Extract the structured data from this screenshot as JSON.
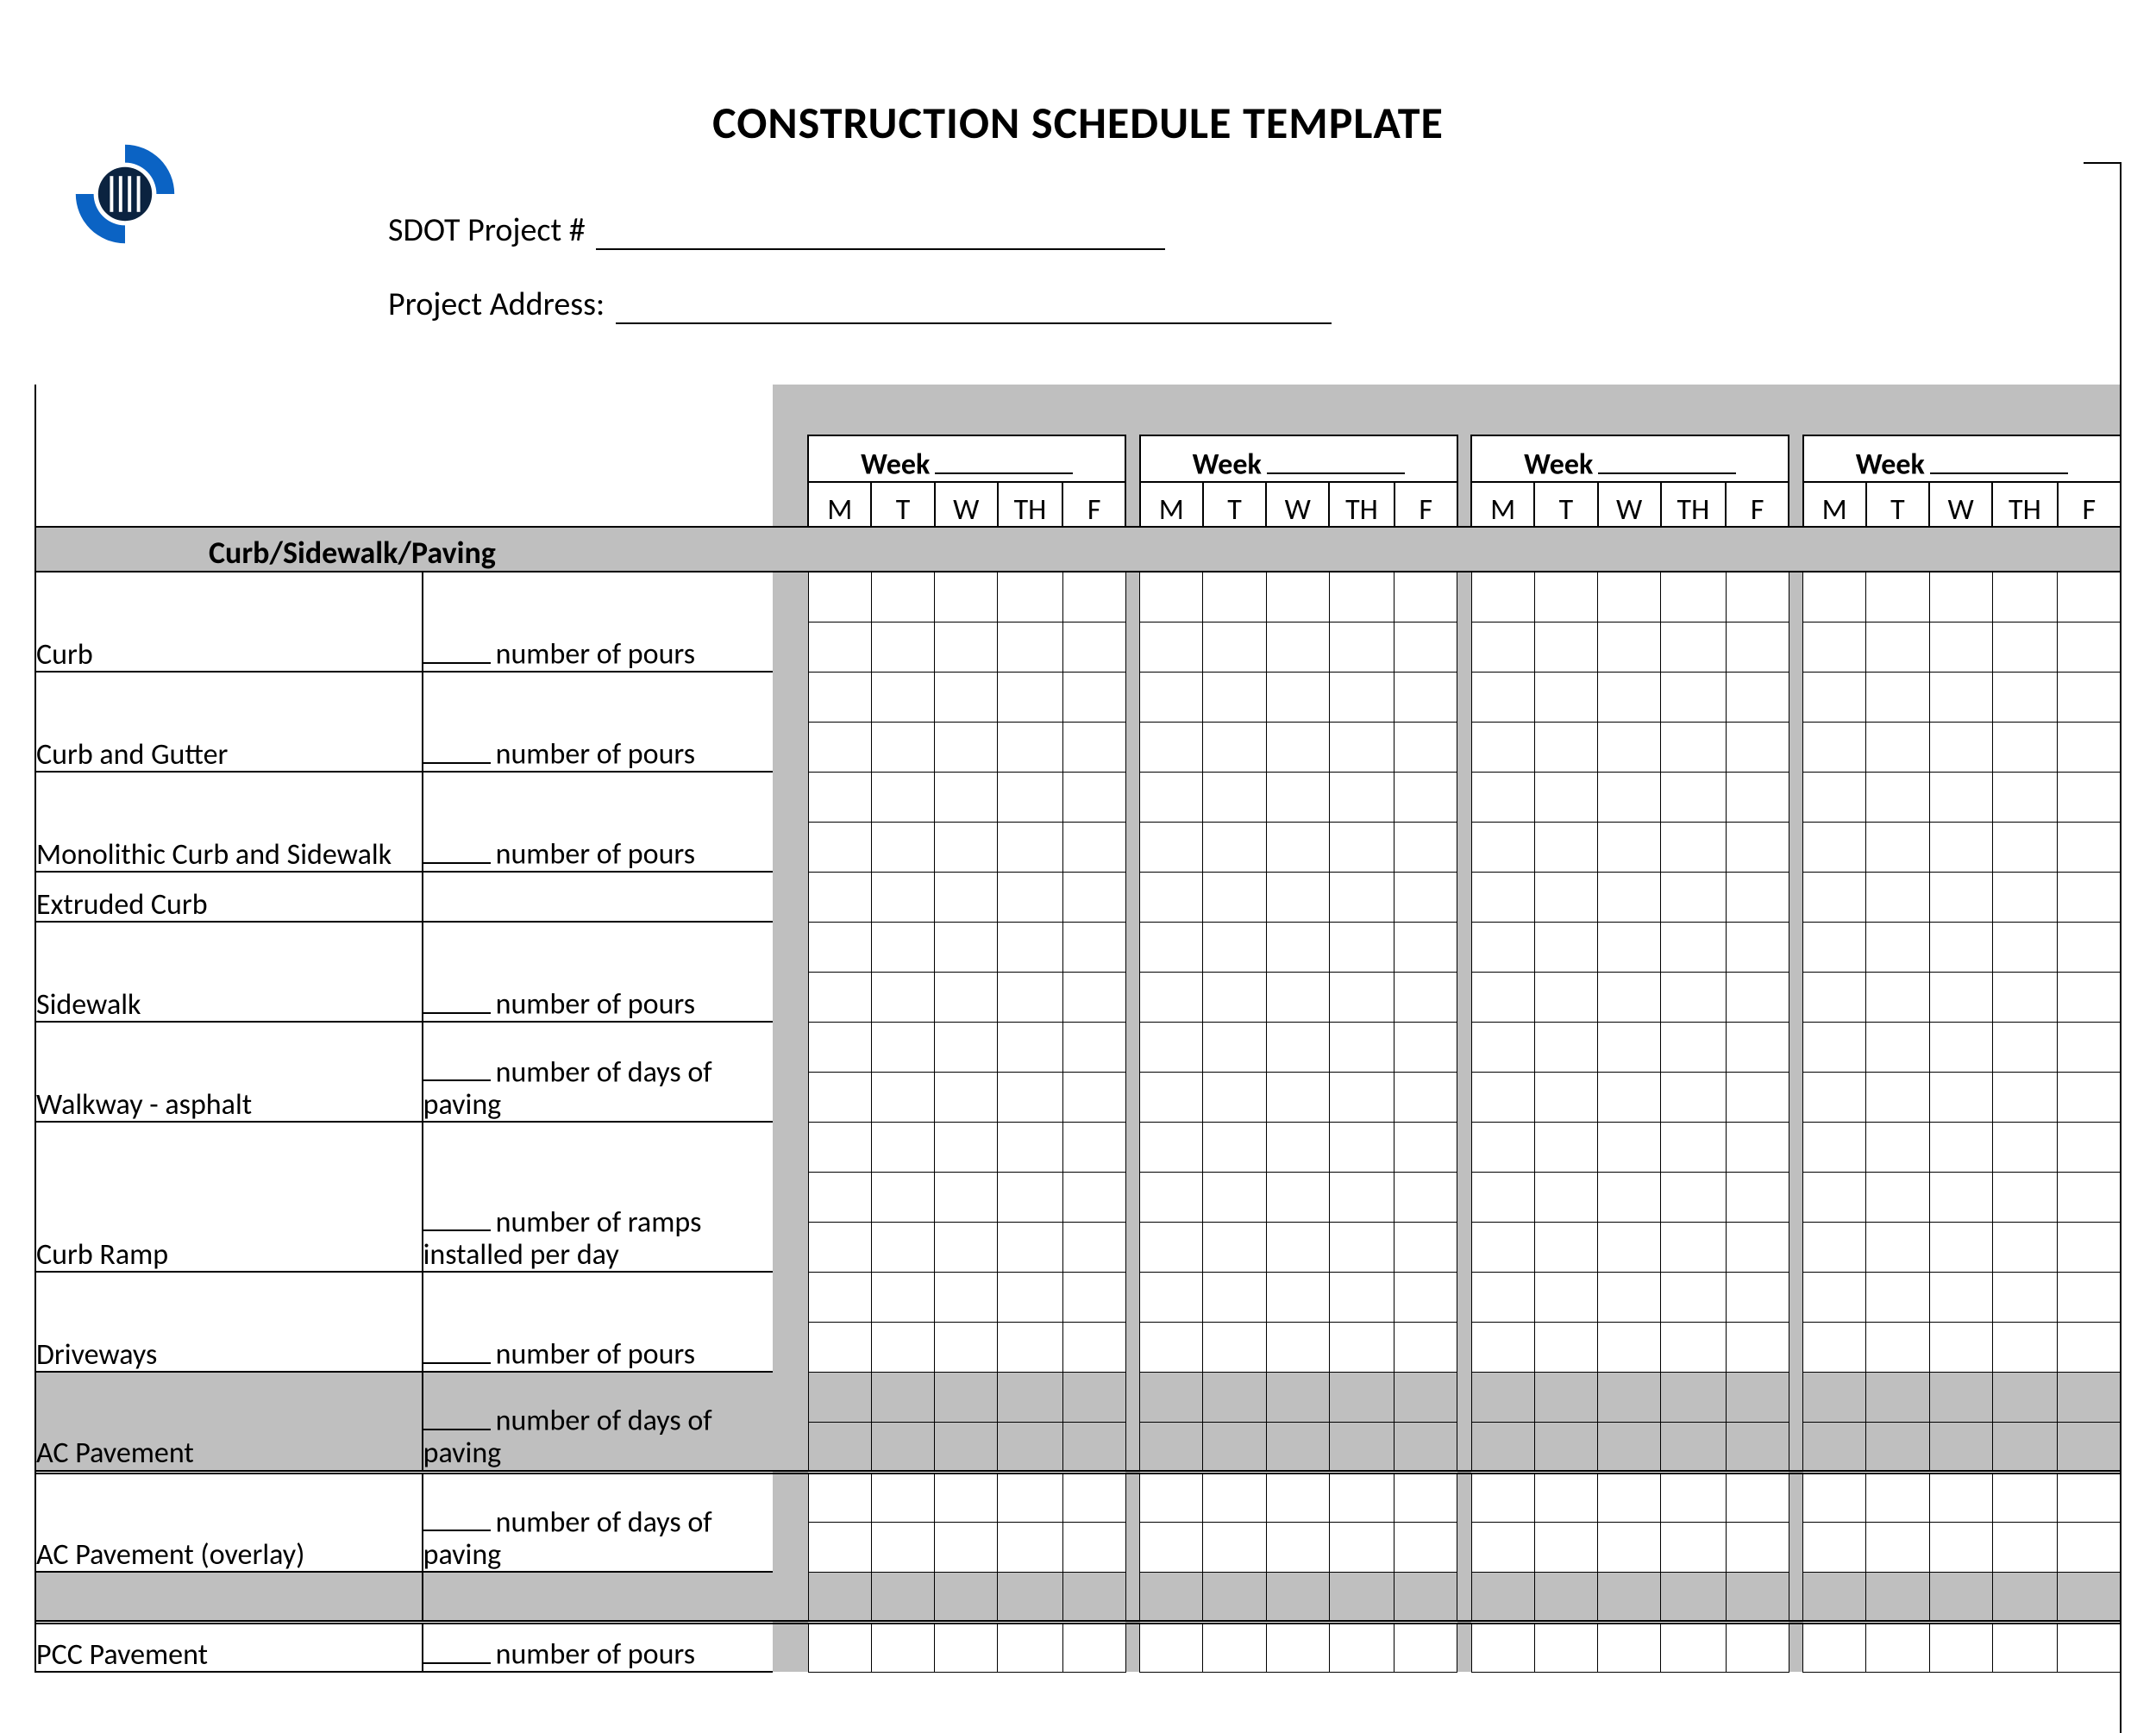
{
  "title": "CONSTRUCTION SCHEDULE TEMPLATE",
  "meta": {
    "project_num_label": "SDOT Project #",
    "project_addr_label": "Project Address:"
  },
  "logo": {
    "outer_color": "#0b63c4",
    "inner_color": "#0b2340"
  },
  "colors": {
    "gray": "#bfbfbf",
    "border": "#000000",
    "text": "#000000",
    "bg": "#ffffff"
  },
  "week_header": {
    "label": "Week",
    "count": 4,
    "days": [
      "M",
      "T",
      "W",
      "TH",
      "F"
    ]
  },
  "section": {
    "label": "Curb/Sidewalk/Paving"
  },
  "rows": [
    {
      "task": "Curb",
      "detail_prefix_blank": true,
      "detail": "number of pours",
      "subrows": 2,
      "highlight": false
    },
    {
      "task": "Curb and Gutter",
      "detail_prefix_blank": true,
      "detail": "number of pours",
      "subrows": 2,
      "highlight": false
    },
    {
      "task": "Monolithic Curb and Sidewalk",
      "detail_prefix_blank": true,
      "detail": "number of pours",
      "subrows": 2,
      "highlight": false
    },
    {
      "task": "Extruded Curb",
      "detail_prefix_blank": false,
      "detail": "",
      "subrows": 1,
      "highlight": false
    },
    {
      "task": "Sidewalk",
      "detail_prefix_blank": true,
      "detail": "number of pours",
      "subrows": 2,
      "highlight": false
    },
    {
      "task": "Walkway - asphalt",
      "detail_prefix_blank": true,
      "detail": "number of days of paving",
      "subrows": 2,
      "highlight": false
    },
    {
      "task": "Curb Ramp",
      "detail_prefix_blank": true,
      "detail": "number of ramps installed per day",
      "subrows": 3,
      "highlight": false
    },
    {
      "task": "Driveways",
      "detail_prefix_blank": true,
      "detail": "number of pours",
      "subrows": 2,
      "highlight": false
    },
    {
      "task": "AC Pavement",
      "detail_prefix_blank": true,
      "detail": "number of days of paving",
      "subrows": 2,
      "highlight": true
    },
    {
      "task": "AC Pavement (overlay)",
      "detail_prefix_blank": true,
      "detail": "number of days of paving",
      "subrows": 2,
      "highlight": false
    },
    {
      "task": "",
      "detail_prefix_blank": false,
      "detail": "",
      "subrows": 1,
      "highlight": true
    },
    {
      "task": "PCC Pavement",
      "detail_prefix_blank": true,
      "detail": "number of pours",
      "subrows": 1,
      "highlight": false
    }
  ]
}
